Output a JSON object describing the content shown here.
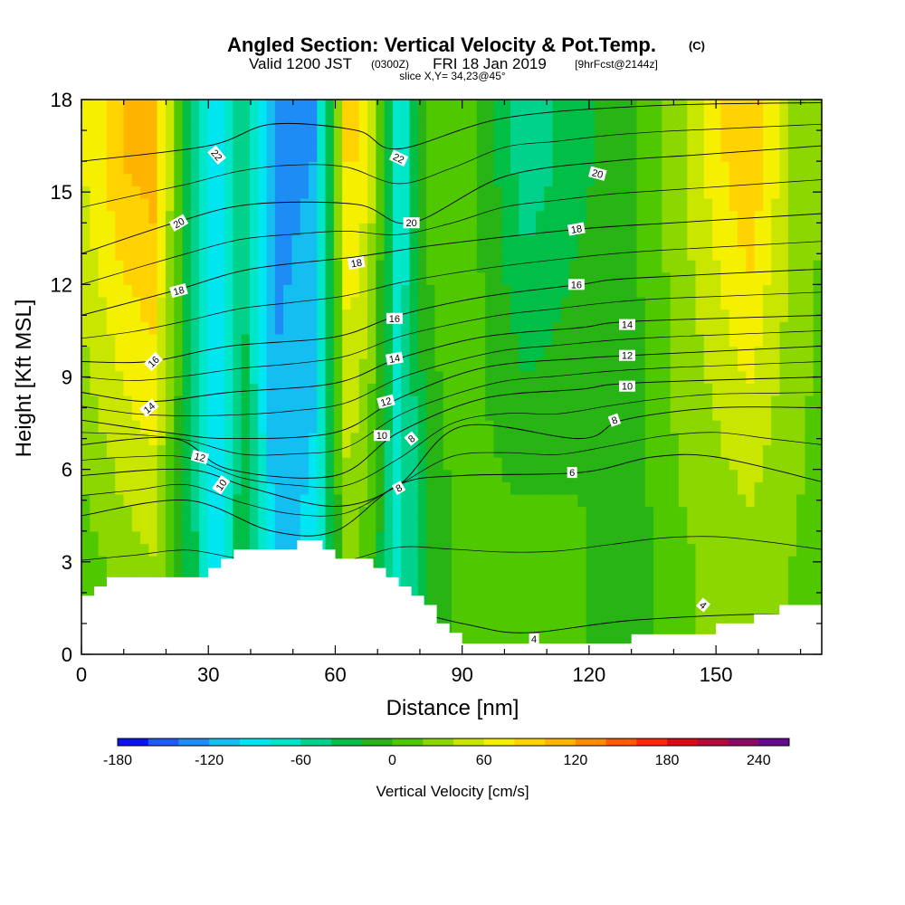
{
  "header": {
    "title_main": "Angled Section: Vertical Velocity & Pot.Temp.",
    "title_unit": "(C)",
    "valid_a": "Valid 1200 JST",
    "valid_b": "(0300Z)",
    "valid_c": "FRI 18 Jan 2019",
    "valid_d": "[9hrFcst@2144z]",
    "slice": "slice X,Y= 34,23@45°"
  },
  "chart_data": {
    "type": "heatmap",
    "xlabel": "Distance [nm]",
    "ylabel": "Height [Kft MSL]",
    "xlim": [
      0,
      175
    ],
    "ylim": [
      0,
      18
    ],
    "x_ticks": [
      0,
      30,
      60,
      90,
      120,
      150
    ],
    "y_ticks": [
      0,
      3,
      6,
      9,
      12,
      15,
      18
    ],
    "colorbar": {
      "label": "Vertical Velocity [cm/s]",
      "tick_values": [
        -180,
        -120,
        -60,
        0,
        60,
        120,
        180,
        240
      ],
      "range": [
        -180,
        260
      ],
      "colors": [
        "#0a14f0",
        "#1e5af5",
        "#1e8cf5",
        "#14bef0",
        "#00e6f0",
        "#00e6c8",
        "#00d28c",
        "#00be46",
        "#28b414",
        "#50c800",
        "#8cd700",
        "#c8e600",
        "#f5f000",
        "#ffd200",
        "#ffb400",
        "#ff8c00",
        "#ff5a00",
        "#ff280a",
        "#dc0a14",
        "#b40a3c",
        "#8c0a64",
        "#640a8c"
      ]
    },
    "terrain": [
      [
        0,
        1.9
      ],
      [
        3,
        1.9
      ],
      [
        3,
        2.2
      ],
      [
        6,
        2.2
      ],
      [
        6,
        2.5
      ],
      [
        30,
        2.5
      ],
      [
        30,
        2.8
      ],
      [
        33,
        2.8
      ],
      [
        33,
        3.1
      ],
      [
        36,
        3.1
      ],
      [
        36,
        3.4
      ],
      [
        51,
        3.4
      ],
      [
        51,
        3.7
      ],
      [
        57,
        3.7
      ],
      [
        57,
        3.4
      ],
      [
        60,
        3.4
      ],
      [
        60,
        3.1
      ],
      [
        69,
        3.1
      ],
      [
        69,
        2.8
      ],
      [
        72,
        2.8
      ],
      [
        72,
        2.5
      ],
      [
        75,
        2.5
      ],
      [
        75,
        2.2
      ],
      [
        78,
        2.2
      ],
      [
        78,
        1.9
      ],
      [
        81,
        1.9
      ],
      [
        81,
        1.6
      ],
      [
        84,
        1.6
      ],
      [
        84,
        1.0
      ],
      [
        87,
        1.0
      ],
      [
        87,
        0.7
      ],
      [
        90,
        0.7
      ],
      [
        90,
        0.35
      ],
      [
        130,
        0.35
      ],
      [
        130,
        0.65
      ],
      [
        150,
        0.65
      ],
      [
        150,
        1.0
      ],
      [
        159,
        1.0
      ],
      [
        159,
        1.3
      ],
      [
        165,
        1.3
      ],
      [
        165,
        1.6
      ],
      [
        175,
        1.6
      ]
    ],
    "velocity_columns": [
      {
        "x": 0,
        "v": 10,
        "top": 60
      },
      {
        "x": 10,
        "v": 30,
        "top": 100
      },
      {
        "x": 17,
        "v": 40,
        "top": 110
      },
      {
        "x": 27,
        "v": -40,
        "top": -60
      },
      {
        "x": 32,
        "v": -110,
        "top": -90
      },
      {
        "x": 38,
        "v": -20,
        "top": -40
      },
      {
        "x": 46,
        "v": -110,
        "top": -130
      },
      {
        "x": 55,
        "v": -90,
        "top": -120
      },
      {
        "x": 63,
        "v": 30,
        "top": 90
      },
      {
        "x": 68,
        "v": 5,
        "top": 60
      },
      {
        "x": 75,
        "v": -70,
        "top": -80
      },
      {
        "x": 82,
        "v": -15,
        "top": 5
      },
      {
        "x": 90,
        "v": 5,
        "top": 20
      },
      {
        "x": 105,
        "v": 10,
        "top": -55
      },
      {
        "x": 118,
        "v": 5,
        "top": -25
      },
      {
        "x": 128,
        "v": -20,
        "top": -10
      },
      {
        "x": 140,
        "v": 15,
        "top": 30
      },
      {
        "x": 152,
        "v": 25,
        "top": 80
      },
      {
        "x": 158,
        "v": 30,
        "top": 100
      },
      {
        "x": 168,
        "v": 20,
        "top": 40
      },
      {
        "x": 175,
        "v": 10,
        "top": 20
      }
    ],
    "theta_contours": [
      {
        "value": 4,
        "pts": [
          [
            0,
            1.6
          ],
          [
            30,
            1.8
          ],
          [
            60,
            1.9
          ],
          [
            90,
            1.0
          ],
          [
            105,
            0.7
          ],
          [
            130,
            1.1
          ],
          [
            160,
            1.3
          ],
          [
            175,
            1.2
          ]
        ]
      },
      {
        "value": 6,
        "pts": [
          [
            0,
            4.5
          ],
          [
            25,
            5.0
          ],
          [
            45,
            4.0
          ],
          [
            60,
            4.0
          ],
          [
            75,
            5.5
          ],
          [
            90,
            5.8
          ],
          [
            118,
            5.9
          ],
          [
            135,
            6.4
          ],
          [
            150,
            6.4
          ],
          [
            175,
            5.6
          ]
        ]
      },
      {
        "value": 8,
        "pts": [
          [
            0,
            5.8
          ],
          [
            25,
            6.0
          ],
          [
            40,
            5.4
          ],
          [
            60,
            4.8
          ],
          [
            75,
            5.5
          ],
          [
            90,
            7.4
          ],
          [
            118,
            7.0
          ],
          [
            128,
            7.6
          ],
          [
            150,
            8.0
          ],
          [
            175,
            8.0
          ]
        ]
      },
      {
        "value": 10,
        "pts": [
          [
            0,
            6.8
          ],
          [
            22,
            7.0
          ],
          [
            35,
            6.0
          ],
          [
            60,
            5.8
          ],
          [
            75,
            7.2
          ],
          [
            95,
            8.3
          ],
          [
            118,
            8.6
          ],
          [
            130,
            8.8
          ],
          [
            175,
            9.0
          ]
        ]
      },
      {
        "value": 12,
        "pts": [
          [
            0,
            7.6
          ],
          [
            20,
            7.2
          ],
          [
            35,
            7.0
          ],
          [
            60,
            7.2
          ],
          [
            75,
            8.3
          ],
          [
            95,
            9.3
          ],
          [
            118,
            9.6
          ],
          [
            130,
            9.7
          ],
          [
            175,
            10.0
          ]
        ]
      },
      {
        "value": 14,
        "pts": [
          [
            0,
            8.5
          ],
          [
            16,
            8.2
          ],
          [
            35,
            8.5
          ],
          [
            60,
            8.8
          ],
          [
            75,
            9.6
          ],
          [
            95,
            10.3
          ],
          [
            118,
            10.6
          ],
          [
            130,
            10.8
          ],
          [
            175,
            11.0
          ]
        ]
      },
      {
        "value": 16,
        "pts": [
          [
            0,
            9.5
          ],
          [
            16,
            9.5
          ],
          [
            35,
            10.0
          ],
          [
            60,
            10.3
          ],
          [
            75,
            11.0
          ],
          [
            95,
            11.6
          ],
          [
            118,
            12.0
          ],
          [
            130,
            12.2
          ],
          [
            175,
            12.5
          ]
        ]
      },
      {
        "value": 18,
        "pts": [
          [
            0,
            11.0
          ],
          [
            22,
            11.8
          ],
          [
            40,
            12.5
          ],
          [
            65,
            12.9
          ],
          [
            85,
            13.3
          ],
          [
            118,
            13.8
          ],
          [
            140,
            14.0
          ],
          [
            175,
            14.3
          ]
        ]
      },
      {
        "value": 20,
        "pts": [
          [
            0,
            13.0
          ],
          [
            22,
            14.0
          ],
          [
            40,
            14.6
          ],
          [
            65,
            14.6
          ],
          [
            78,
            14.0
          ],
          [
            100,
            15.5
          ],
          [
            125,
            16.0
          ],
          [
            145,
            16.2
          ],
          [
            175,
            16.5
          ]
        ]
      },
      {
        "value": 22,
        "pts": [
          [
            0,
            16.0
          ],
          [
            30,
            16.5
          ],
          [
            45,
            17.2
          ],
          [
            65,
            17.0
          ],
          [
            75,
            16.4
          ],
          [
            100,
            17.4
          ],
          [
            135,
            17.8
          ],
          [
            175,
            17.9
          ]
        ]
      }
    ],
    "contour_labels": [
      {
        "text": "22",
        "x": 32,
        "y": 16.2,
        "angle": 50
      },
      {
        "text": "20",
        "x": 23,
        "y": 14.0,
        "angle": -30
      },
      {
        "text": "18",
        "x": 23,
        "y": 11.8,
        "angle": -15
      },
      {
        "text": "16",
        "x": 17,
        "y": 9.5,
        "angle": -45
      },
      {
        "text": "14",
        "x": 16,
        "y": 8.0,
        "angle": -40
      },
      {
        "text": "12",
        "x": 28,
        "y": 6.4,
        "angle": 15
      },
      {
        "text": "10",
        "x": 33,
        "y": 5.5,
        "angle": -55
      },
      {
        "text": "22",
        "x": 75,
        "y": 16.1,
        "angle": 25
      },
      {
        "text": "20",
        "x": 78,
        "y": 14.0,
        "angle": 0
      },
      {
        "text": "18",
        "x": 65,
        "y": 12.7,
        "angle": -10
      },
      {
        "text": "16",
        "x": 74,
        "y": 10.9,
        "angle": 0
      },
      {
        "text": "14",
        "x": 74,
        "y": 9.6,
        "angle": -10
      },
      {
        "text": "12",
        "x": 72,
        "y": 8.2,
        "angle": -15
      },
      {
        "text": "10",
        "x": 71,
        "y": 7.1,
        "angle": 0
      },
      {
        "text": "8",
        "x": 78,
        "y": 7.0,
        "angle": -40
      },
      {
        "text": "8",
        "x": 75,
        "y": 5.4,
        "angle": -30
      },
      {
        "text": "20",
        "x": 122,
        "y": 15.6,
        "angle": 15
      },
      {
        "text": "18",
        "x": 117,
        "y": 13.8,
        "angle": -10
      },
      {
        "text": "16",
        "x": 117,
        "y": 12.0,
        "angle": 0
      },
      {
        "text": "14",
        "x": 129,
        "y": 10.7,
        "angle": 0
      },
      {
        "text": "12",
        "x": 129,
        "y": 9.7,
        "angle": 0
      },
      {
        "text": "10",
        "x": 129,
        "y": 8.7,
        "angle": 0
      },
      {
        "text": "8",
        "x": 126,
        "y": 7.6,
        "angle": -20
      },
      {
        "text": "6",
        "x": 116,
        "y": 5.9,
        "angle": 0
      },
      {
        "text": "4",
        "x": 107,
        "y": 0.5,
        "angle": 0
      },
      {
        "text": "4",
        "x": 147,
        "y": 1.6,
        "angle": 40
      }
    ]
  }
}
